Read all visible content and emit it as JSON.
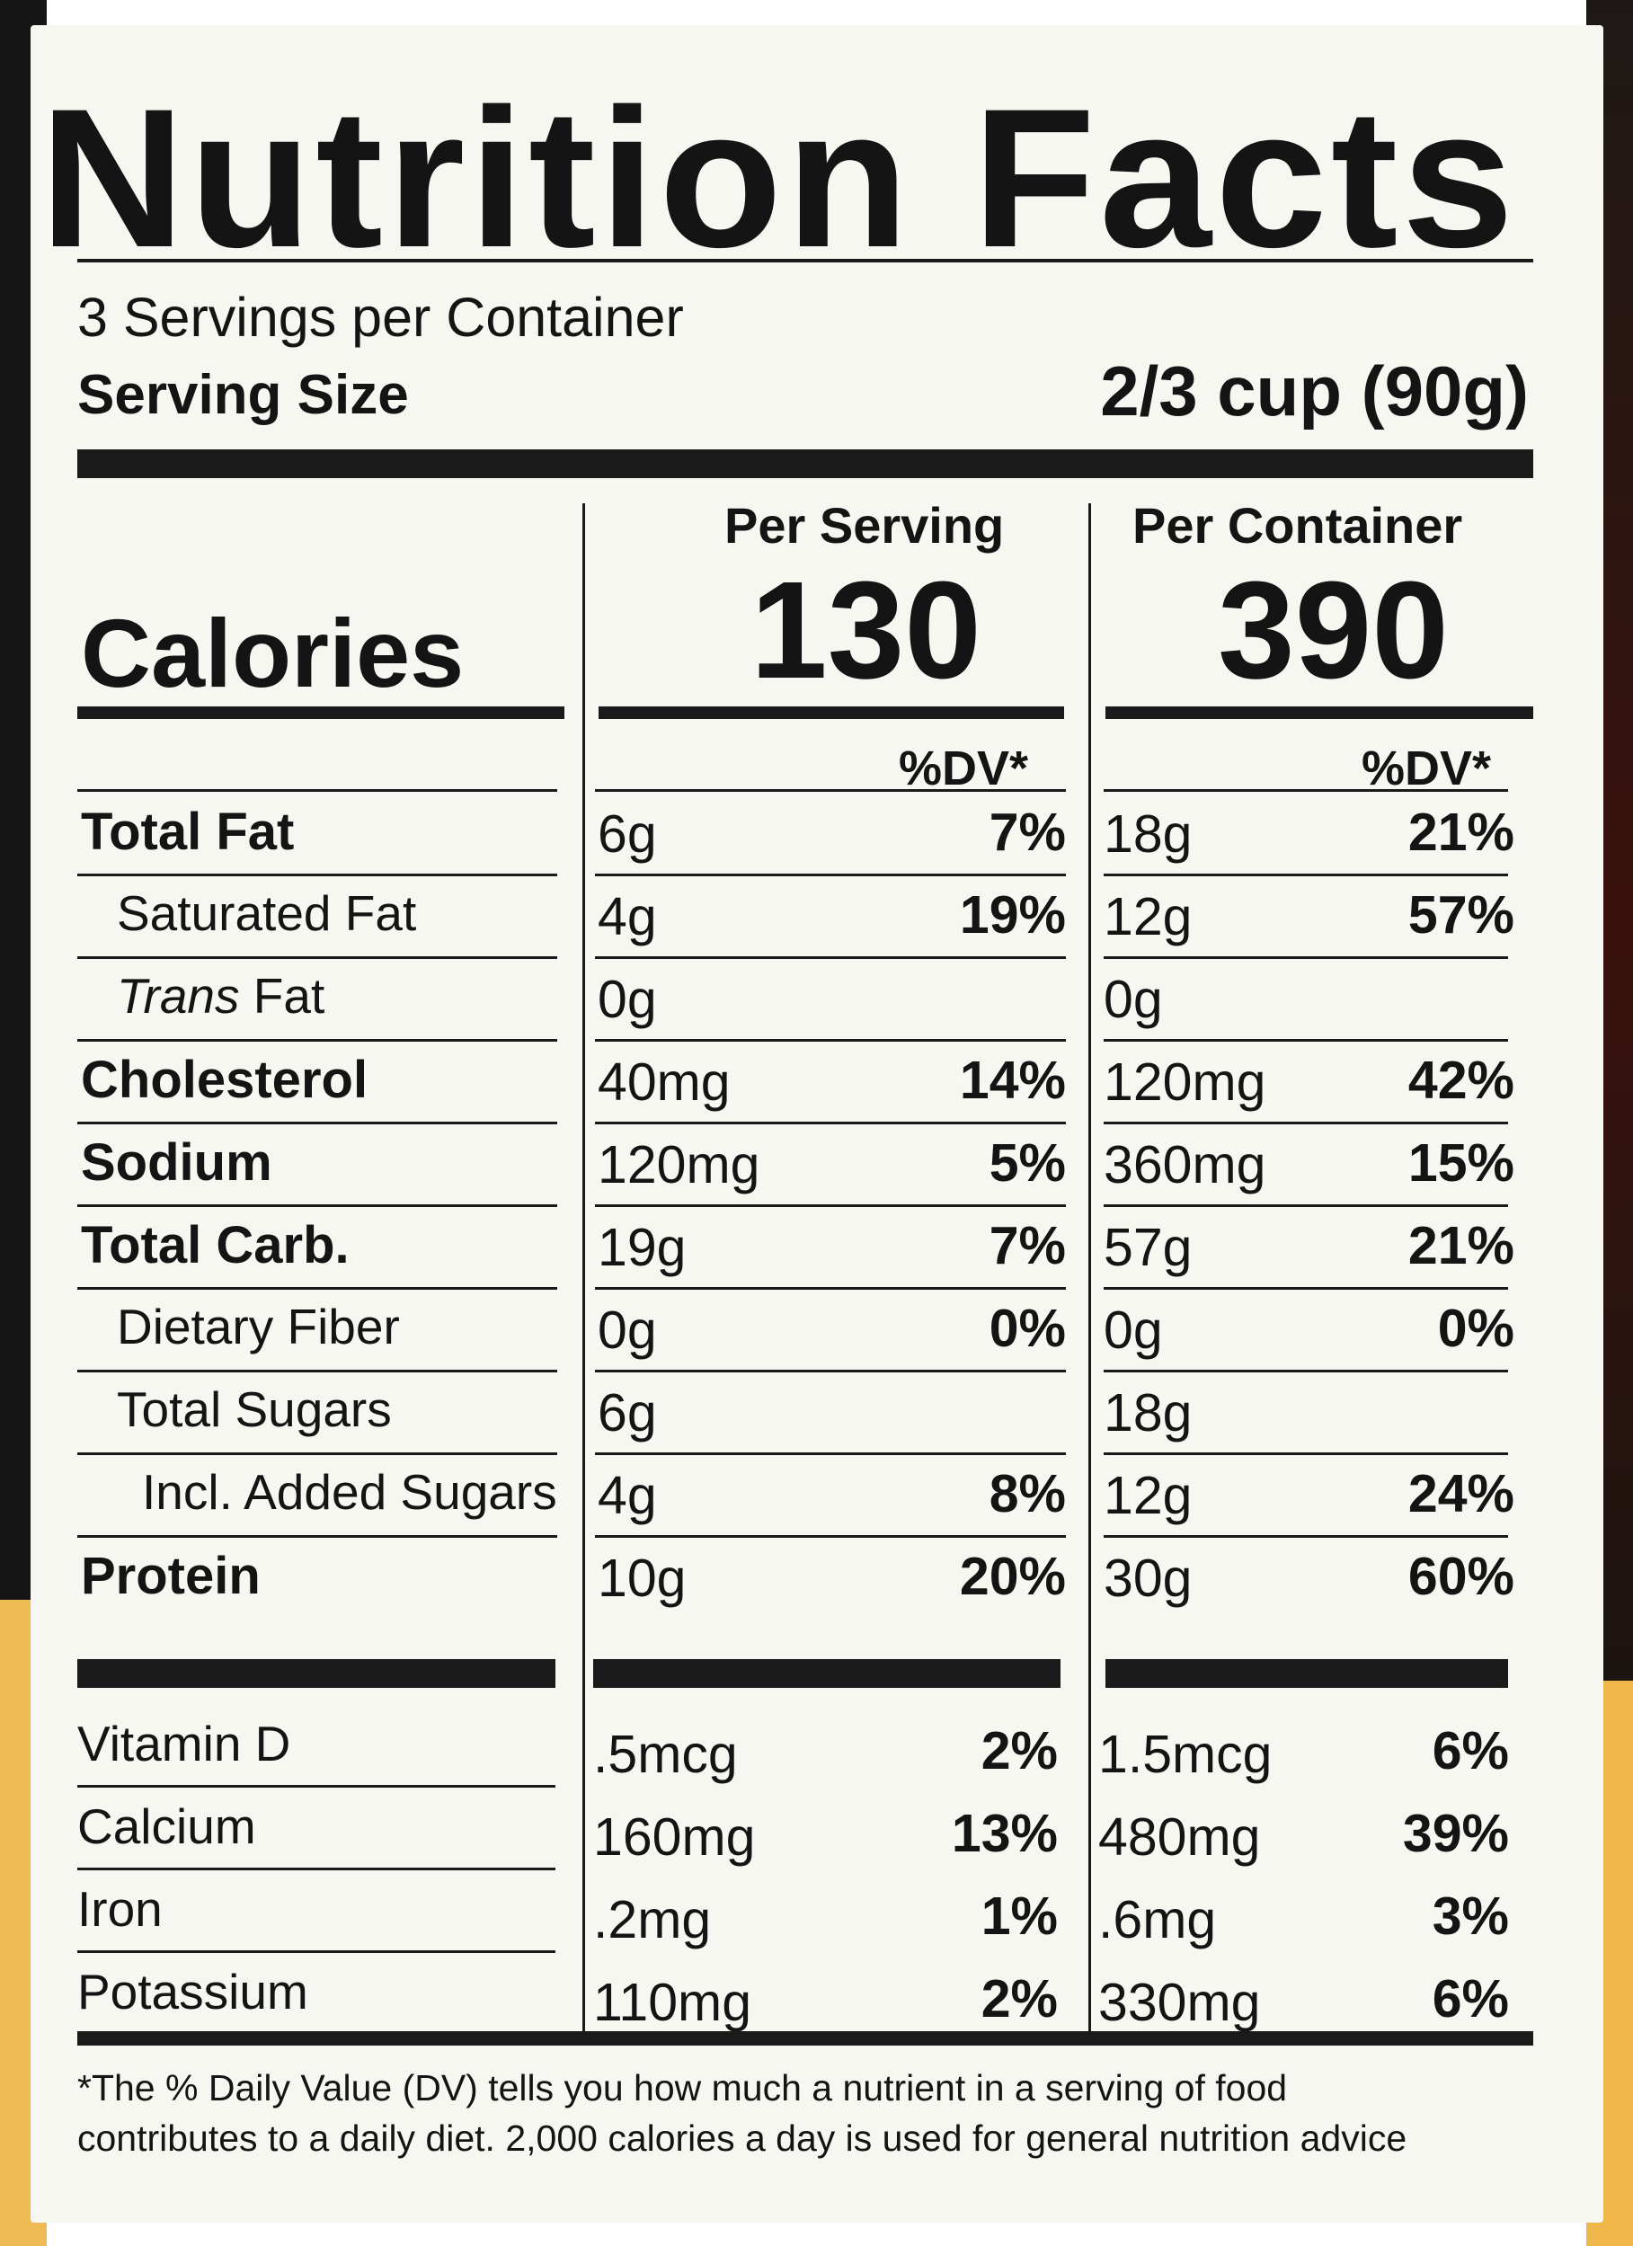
{
  "title": "Nutrition Facts",
  "servings_per_container": "3 Servings per Container",
  "serving_size_label": "Serving Size",
  "serving_size_value": "2/3 cup (90g)",
  "columns": {
    "per_serving": "Per Serving",
    "per_container": "Per Container"
  },
  "calories": {
    "label": "Calories",
    "per_serving": "130",
    "per_container": "390"
  },
  "dv_header": "%DV*",
  "nutrients": [
    {
      "name": "Total Fat",
      "bold": true,
      "indent": 0,
      "serving_amount": "6g",
      "serving_dv": "7%",
      "container_amount": "18g",
      "container_dv": "21%"
    },
    {
      "name": "Saturated Fat",
      "bold": false,
      "indent": 1,
      "serving_amount": "4g",
      "serving_dv": "19%",
      "container_amount": "12g",
      "container_dv": "57%"
    },
    {
      "name_italic": "Trans",
      "name": " Fat",
      "bold": false,
      "indent": 1,
      "serving_amount": "0g",
      "serving_dv": "",
      "container_amount": "0g",
      "container_dv": ""
    },
    {
      "name": "Cholesterol",
      "bold": true,
      "indent": 0,
      "serving_amount": "40mg",
      "serving_dv": "14%",
      "container_amount": "120mg",
      "container_dv": "42%"
    },
    {
      "name": "Sodium",
      "bold": true,
      "indent": 0,
      "serving_amount": "120mg",
      "serving_dv": "5%",
      "container_amount": "360mg",
      "container_dv": "15%"
    },
    {
      "name": "Total Carb.",
      "bold": true,
      "indent": 0,
      "serving_amount": "19g",
      "serving_dv": "7%",
      "container_amount": "57g",
      "container_dv": "21%"
    },
    {
      "name": "Dietary Fiber",
      "bold": false,
      "indent": 1,
      "serving_amount": "0g",
      "serving_dv": "0%",
      "container_amount": "0g",
      "container_dv": "0%"
    },
    {
      "name": "Total Sugars",
      "bold": false,
      "indent": 1,
      "serving_amount": "6g",
      "serving_dv": "",
      "container_amount": "18g",
      "container_dv": ""
    },
    {
      "name": "Incl. Added Sugars",
      "bold": false,
      "indent": 2,
      "serving_amount": "4g",
      "serving_dv": "8%",
      "container_amount": "12g",
      "container_dv": "24%"
    },
    {
      "name": "Protein",
      "bold": true,
      "indent": 0,
      "serving_amount": "10g",
      "serving_dv": "20%",
      "container_amount": "30g",
      "container_dv": "60%"
    }
  ],
  "vitamins": [
    {
      "name": "Vitamin D",
      "serving_amount": ".5mcg",
      "serving_dv": "2%",
      "container_amount": "1.5mcg",
      "container_dv": "6%"
    },
    {
      "name": "Calcium",
      "serving_amount": "160mg",
      "serving_dv": "13%",
      "container_amount": "480mg",
      "container_dv": "39%"
    },
    {
      "name": "Iron",
      "serving_amount": ".2mg",
      "serving_dv": "1%",
      "container_amount": ".6mg",
      "container_dv": "3%"
    },
    {
      "name": "Potassium",
      "serving_amount": "110mg",
      "serving_dv": "2%",
      "container_amount": "330mg",
      "container_dv": "6%"
    }
  ],
  "footnote": {
    "line1": "*The % Daily Value (DV) tells you how much a nutrient in a serving of food",
    "line2": "contributes to a daily diet. 2,000 calories a day is used for general nutrition advice"
  }
}
